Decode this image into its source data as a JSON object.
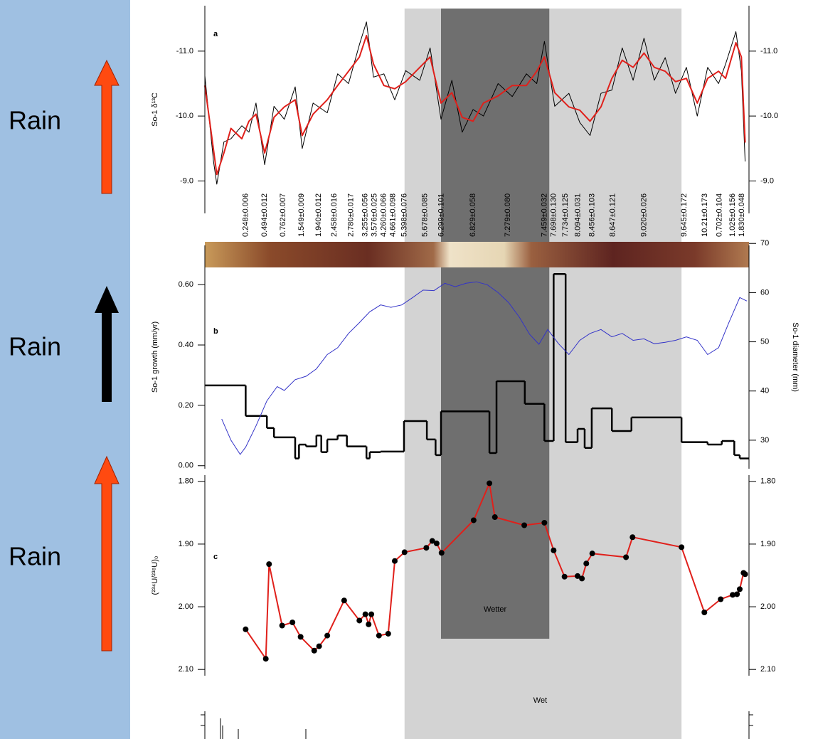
{
  "sidebar": {
    "labels": [
      "Rain",
      "Rain",
      "Rain"
    ]
  },
  "chart_data": [
    {
      "type": "line",
      "label": "a",
      "ylabel": "So-1 δ¹³C",
      "xlim": [
        0,
        100
      ],
      "ylim": [
        -8.5,
        -11.7
      ],
      "yticks": [
        {
          "value": -9,
          "label": "-9.0"
        },
        {
          "value": -10,
          "label": "-10.0"
        },
        {
          "value": -11,
          "label": "-11.0"
        }
      ],
      "x": [
        0,
        1.6,
        2.2,
        3.5,
        4.8,
        6.8,
        8.1,
        9.4,
        11.0,
        12.7,
        14.6,
        16.6,
        17.9,
        19.9,
        22.5,
        24.4,
        26.4,
        28.4,
        29.7,
        31.0,
        32.9,
        34.9,
        36.9,
        39.5,
        41.4,
        43.4,
        45.4,
        47.3,
        49.3,
        51.2,
        53.9,
        56.5,
        59.1,
        61.0,
        62.4,
        64.3,
        66.9,
        68.9,
        70.8,
        72.8,
        74.8,
        76.7,
        78.7,
        80.7,
        82.6,
        84.6,
        86.5,
        88.5,
        90.5,
        92.4,
        94.4,
        95.7,
        97.6,
        98.6,
        99.3
      ],
      "series": [
        {
          "color": "#000000",
          "values": [
            -10.62,
            -9.3,
            -8.95,
            -9.6,
            -9.65,
            -9.85,
            -9.75,
            -10.2,
            -9.25,
            -10.15,
            -9.95,
            -10.45,
            -9.5,
            -10.2,
            -10.05,
            -10.65,
            -10.5,
            -11.1,
            -11.45,
            -10.6,
            -10.65,
            -10.25,
            -10.7,
            -10.55,
            -11.05,
            -9.95,
            -10.55,
            -9.75,
            -10.1,
            -10.0,
            -10.5,
            -10.3,
            -10.65,
            -10.5,
            -11.15,
            -10.15,
            -10.35,
            -9.9,
            -9.7,
            -10.35,
            -10.4,
            -11.05,
            -10.55,
            -11.2,
            -10.55,
            -10.9,
            -10.35,
            -10.75,
            -10.0,
            -10.75,
            -10.5,
            -10.8,
            -11.3,
            -10.7,
            -9.3
          ]
        },
        {
          "color": "#e0201b",
          "values": [
            -10.47,
            -9.48,
            -9.1,
            -9.43,
            -9.81,
            -9.65,
            -9.92,
            -10.03,
            -9.43,
            -9.98,
            -10.14,
            -10.25,
            -9.7,
            -10.03,
            -10.25,
            -10.47,
            -10.69,
            -10.91,
            -11.24,
            -10.8,
            -10.47,
            -10.42,
            -10.53,
            -10.75,
            -10.91,
            -10.2,
            -10.36,
            -9.98,
            -9.92,
            -10.2,
            -10.31,
            -10.47,
            -10.47,
            -10.69,
            -10.91,
            -10.36,
            -10.14,
            -10.09,
            -9.92,
            -10.14,
            -10.58,
            -10.86,
            -10.75,
            -10.97,
            -10.75,
            -10.69,
            -10.53,
            -10.58,
            -10.2,
            -10.58,
            -10.69,
            -10.58,
            -11.13,
            -10.91,
            -9.59
          ]
        }
      ],
      "dates": [
        "0.248±0.006",
        "0.494±0.012",
        "0.762±0.007",
        "1.549±0.009",
        "1.940±0.012",
        "2.458±0.016",
        "2.780±0.017",
        "3.255±0.056",
        "3.576±0.025",
        "4.260±0.066",
        "4.661±0.098",
        "5.398±0.076",
        "5.678±0.085",
        "6.299±0.101",
        "6.829±0.058",
        "7.279±0.080",
        "7.459±0.032",
        "7.698±0.130",
        "7.734±0.125",
        "8.094±0.031",
        "8.456±0.103",
        "8.647±0.121",
        "9.020±0.026",
        "9.645±0.172",
        "10.21±0.173",
        "0.702±0.104",
        "1.025±0.156",
        "1.830±0.048"
      ],
      "date_x": [
        7.5,
        11.0,
        14.4,
        17.8,
        20.9,
        23.8,
        26.9,
        29.5,
        31.2,
        32.9,
        34.6,
        36.7,
        40.5,
        43.5,
        49.3,
        55.7,
        62.4,
        64.1,
        66.3,
        68.6,
        71.2,
        75.0,
        80.7,
        88.1,
        91.9,
        94.6,
        97.0,
        98.7
      ]
    },
    {
      "type": "step",
      "label": "b",
      "ylabel": "So-1 growth (mm/yr)",
      "y2label": "So-1 diameter (mm)",
      "xlim": [
        0,
        100
      ],
      "ylim": [
        -0.01,
        0.73
      ],
      "y2lim": [
        24.2,
        69.6
      ],
      "yticks": [
        {
          "value": 0,
          "label": "0.00"
        },
        {
          "value": 0.2,
          "label": "0.20"
        },
        {
          "value": 0.4,
          "label": "0.40"
        },
        {
          "value": 0.6,
          "label": "0.60"
        }
      ],
      "y2ticks": [
        30,
        40,
        50,
        60,
        70
      ],
      "series": [
        {
          "color": "#000000",
          "bins": [
            0,
            7.5,
            11.4,
            12.7,
            16.6,
            17.3,
            18.6,
            20.5,
            21.4,
            22.5,
            24.4,
            26.1,
            29.7,
            30.3,
            32.3,
            36.6,
            40.8,
            42.4,
            43.4,
            52.3,
            53.6,
            58.8,
            62.4,
            64.1,
            66.3,
            68.5,
            69.8,
            71.1,
            74.8,
            78.4,
            87.6,
            92.4,
            95.0,
            97.3,
            98.3,
            100
          ],
          "values": [
            0.266,
            0.165,
            0.125,
            0.094,
            0.024,
            0.07,
            0.064,
            0.1,
            0.045,
            0.087,
            0.1,
            0.064,
            0.024,
            0.045,
            0.047,
            0.148,
            0.087,
            0.035,
            0.18,
            0.042,
            0.28,
            0.205,
            0.082,
            0.635,
            0.078,
            0.122,
            0.059,
            0.19,
            0.115,
            0.16,
            0.078,
            0.07,
            0.082,
            0.035,
            0.024
          ]
        },
        {
          "color": "#3434c8",
          "axis": "y2",
          "x": [
            3.1,
            4.8,
            6.5,
            7.5,
            9.4,
            11.4,
            13.3,
            14.6,
            16.6,
            18.6,
            20.5,
            22.5,
            24.4,
            26.4,
            28.4,
            30.3,
            32.3,
            34.2,
            36.2,
            38.2,
            40.1,
            42.1,
            44.1,
            46.0,
            48.0,
            49.9,
            51.9,
            53.9,
            55.8,
            57.8,
            59.7,
            61.4,
            63.0,
            65.0,
            66.9,
            68.9,
            70.8,
            72.8,
            74.8,
            76.7,
            78.7,
            80.7,
            82.6,
            84.6,
            86.5,
            88.5,
            90.5,
            92.4,
            94.4,
            96.3,
            98.3,
            99.6
          ],
          "values": [
            34.3,
            30.0,
            27.1,
            28.6,
            32.9,
            38.0,
            40.9,
            40.1,
            42.3,
            43.0,
            44.5,
            47.4,
            48.8,
            51.7,
            53.9,
            56.1,
            57.5,
            57.0,
            57.5,
            59.0,
            60.5,
            60.4,
            61.9,
            61.2,
            61.9,
            62.2,
            61.6,
            60.0,
            58.0,
            55.0,
            51.5,
            49.5,
            52.5,
            49.6,
            47.4,
            50.3,
            51.7,
            52.5,
            51.0,
            51.7,
            50.3,
            50.6,
            49.6,
            49.9,
            50.3,
            51.0,
            50.3,
            47.4,
            48.8,
            53.9,
            59.0,
            58.3
          ]
        }
      ]
    },
    {
      "type": "line",
      "label": "c",
      "ylabel": "(²³⁴U/²³⁸U)₀",
      "markers": true,
      "marker_color": "#000000",
      "xlim": [
        0,
        100
      ],
      "ylim": [
        2.11,
        1.79
      ],
      "yticks": [
        {
          "value": 1.8,
          "label": "1.80"
        },
        {
          "value": 1.9,
          "label": "1.90"
        },
        {
          "value": 2,
          "label": "2.00"
        },
        {
          "value": 2.1,
          "label": "2.10"
        }
      ],
      "x": [
        7.5,
        11.2,
        11.8,
        14.2,
        16.1,
        17.6,
        20.1,
        21.0,
        22.5,
        25.6,
        28.4,
        29.5,
        30.1,
        30.6,
        32.0,
        33.7,
        34.9,
        36.7,
        40.7,
        41.8,
        42.6,
        43.5,
        49.4,
        52.3,
        53.3,
        58.7,
        62.4,
        64.1,
        66.1,
        68.5,
        69.3,
        70.1,
        71.2,
        77.4,
        78.6,
        87.6,
        91.8,
        94.8,
        97.0,
        97.8,
        98.3,
        99.0,
        99.3
      ],
      "series": [
        {
          "color": "#e0201b",
          "values": [
            2.036,
            2.083,
            1.932,
            2.03,
            2.025,
            2.048,
            2.07,
            2.063,
            2.046,
            1.99,
            2.022,
            2.012,
            2.028,
            2.012,
            2.046,
            2.043,
            1.927,
            1.913,
            1.906,
            1.895,
            1.899,
            1.914,
            1.862,
            1.803,
            1.857,
            1.87,
            1.866,
            1.91,
            1.952,
            1.951,
            1.955,
            1.931,
            1.915,
            1.921,
            1.889,
            1.905,
            2.009,
            1.988,
            1.981,
            1.98,
            1.972,
            1.946,
            1.948
          ]
        }
      ],
      "periods": [
        {
          "label": "Wet",
          "color": "#d3d3d3",
          "x": [
            36.7,
            87.6
          ]
        },
        {
          "label": "Wetter",
          "color": "#6f6f6f",
          "x": [
            43.4,
            63.3
          ]
        }
      ]
    }
  ]
}
